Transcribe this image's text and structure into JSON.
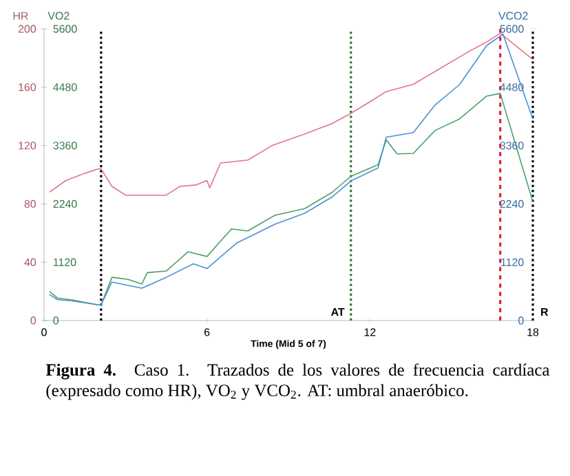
{
  "chart_data": {
    "type": "line",
    "xlabel": "Time (Mid 5 of 7)",
    "ylabel": "HR",
    "y2label": "VO2",
    "y3label": "VCO2",
    "xlim": [
      0,
      18
    ],
    "xticks": [
      0,
      6,
      12,
      18
    ],
    "ylim": [
      0,
      200
    ],
    "yticks": [
      0,
      40,
      80,
      120,
      160,
      200
    ],
    "y2lim": [
      0,
      5600
    ],
    "y2ticks": [
      0,
      1120,
      2240,
      3360,
      4480,
      5600
    ],
    "y3lim": [
      0,
      5600
    ],
    "y3ticks": [
      0,
      1120,
      2240,
      3360,
      4480,
      5600
    ],
    "series": [
      {
        "color": "#e07585",
        "x": [
          0.2,
          0.8,
          1.5,
          2.0,
          2.1,
          2.5,
          3.0,
          4.0,
          4.5,
          5.0,
          5.6,
          6.0,
          6.1,
          6.5,
          7.5,
          8.4,
          9.6,
          10.6,
          11.2,
          12.0,
          12.6,
          13.6,
          14.6,
          15.6,
          16.3,
          16.8,
          17.4,
          18.0
        ],
        "values": [
          88,
          96,
          101,
          104,
          104,
          92,
          86,
          86,
          86,
          92,
          93,
          96,
          91,
          108,
          110,
          120,
          128,
          135,
          141,
          150,
          157,
          162,
          173,
          184,
          191,
          197,
          188,
          179
        ]
      },
      {
        "axis": "y2",
        "color": "#4aa065",
        "x": [
          0.2,
          0.5,
          1.0,
          2.0,
          2.1,
          2.5,
          3.1,
          3.6,
          3.8,
          4.5,
          5.3,
          6.0,
          6.9,
          7.5,
          8.5,
          9.6,
          10.6,
          11.3,
          12.3,
          12.6,
          13.0,
          13.6,
          14.4,
          15.3,
          16.3,
          16.8,
          18.0
        ],
        "values": [
          560,
          430,
          400,
          300,
          300,
          830,
          790,
          700,
          920,
          950,
          1320,
          1230,
          1760,
          1720,
          2020,
          2150,
          2460,
          2770,
          2990,
          3470,
          3200,
          3210,
          3650,
          3870,
          4310,
          4360,
          2280
        ]
      },
      {
        "axis": "y3",
        "color": "#4a90d5",
        "x": [
          0.2,
          0.5,
          1.0,
          2.0,
          2.1,
          2.5,
          3.6,
          4.5,
          5.5,
          6.0,
          7.1,
          8.5,
          9.6,
          10.6,
          11.3,
          12.3,
          12.6,
          13.6,
          14.4,
          15.3,
          16.3,
          16.9,
          18.0
        ],
        "values": [
          500,
          400,
          380,
          300,
          300,
          740,
          620,
          830,
          1090,
          1000,
          1490,
          1850,
          2060,
          2370,
          2680,
          2930,
          3520,
          3610,
          4140,
          4530,
          5280,
          5500,
          3870
        ]
      }
    ],
    "ref_lines": [
      {
        "axis": "x",
        "value": 2.1,
        "color": "#000000",
        "line_style": "dotted"
      },
      {
        "axis": "x",
        "value": 11.3,
        "label": "AT",
        "color": "#2a7a3a",
        "line_style": "dotted"
      },
      {
        "axis": "x",
        "value": 16.8,
        "color": "#e0203a",
        "line_style": "dashed"
      },
      {
        "axis": "x",
        "value": 18,
        "label": "R",
        "color": "#000000",
        "line_style": "dotted"
      }
    ],
    "annotations": [
      "**Figura 4.** Caso 1. Trazados de los valores de frecuencia cardíaca (expresado como HR), VO$_{2}$ y VCO$_{2}$. AT: umbral anaeróbico."
    ]
  }
}
